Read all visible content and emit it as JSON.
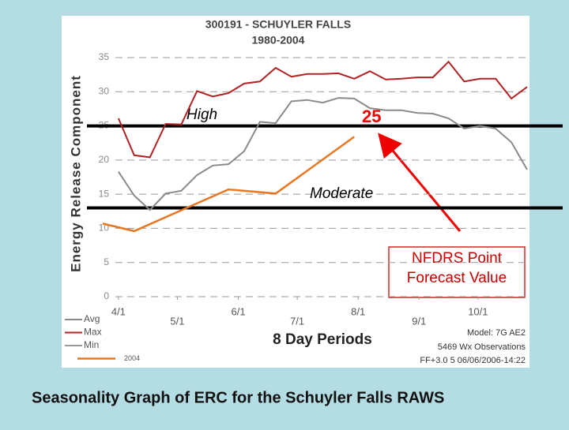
{
  "chart_data": {
    "type": "line",
    "title": "300191 - SCHUYLER FALLS",
    "subtitle": "1980-2004",
    "y_label": "Energy Release Component",
    "x_label": "8 Day Periods",
    "caption": "Seasonality Graph of ERC for the Schuyler Falls RAWS",
    "notes": [
      "Model: 7G AE2",
      "5469 Wx Observations",
      "FF+3.0 5 06/06/2006-14:22"
    ],
    "forecast_label": "25",
    "forecast_box": "NFDRS Point Forecast Value",
    "thresholds": [
      {
        "value": 25,
        "label": "High"
      },
      {
        "value": 13,
        "label": "Moderate"
      }
    ],
    "xlim": [
      -8,
      208
    ],
    "ylim": [
      0,
      35
    ],
    "xticks": [
      {
        "value": 0,
        "label": "4/1"
      },
      {
        "value": 30,
        "label": "5/1"
      },
      {
        "value": 61,
        "label": "6/1"
      },
      {
        "value": 91,
        "label": "7/1"
      },
      {
        "value": 122,
        "label": "8/1"
      },
      {
        "value": 153,
        "label": "9/1"
      },
      {
        "value": 183,
        "label": "10/1"
      }
    ],
    "yticks": [
      0,
      5,
      10,
      15,
      20,
      25,
      30,
      35
    ],
    "grid": true,
    "series": [
      {
        "name": "Avg",
        "color": "#8a8a8a",
        "x": [
          0,
          8,
          16,
          24,
          32,
          40,
          48,
          56,
          64,
          72,
          80,
          88,
          96,
          104,
          112,
          120,
          128,
          136,
          144,
          152,
          160,
          168,
          176,
          184,
          192,
          200,
          208
        ],
        "values": [
          18.3,
          14.8,
          12.7,
          15.1,
          15.5,
          17.8,
          19.2,
          19.4,
          21.3,
          25.6,
          25.4,
          28.6,
          28.8,
          28.4,
          29.1,
          29.0,
          27.6,
          27.3,
          27.3,
          26.9,
          26.8,
          26.1,
          24.6,
          25.0,
          24.6,
          22.6,
          18.6
        ]
      },
      {
        "name": "Max",
        "color": "#b22222",
        "x": [
          0,
          8,
          16,
          24,
          32,
          40,
          48,
          56,
          64,
          72,
          80,
          88,
          96,
          104,
          112,
          120,
          128,
          136,
          144,
          152,
          160,
          168,
          176,
          184,
          192,
          200,
          208
        ],
        "values": [
          26.1,
          20.7,
          20.4,
          25.3,
          25.2,
          30.1,
          29.3,
          29.8,
          31.2,
          31.5,
          33.5,
          32.2,
          32.6,
          32.6,
          32.7,
          31.9,
          33.0,
          31.8,
          31.9,
          32.1,
          32.1,
          34.4,
          31.5,
          31.9,
          31.9,
          29.0,
          30.7
        ]
      },
      {
        "name": "Min",
        "color": "#9a9a9a",
        "x": [
          0,
          8,
          16,
          24,
          32,
          40,
          48,
          56,
          64,
          72,
          80,
          88,
          96,
          104,
          112,
          120,
          128,
          136,
          144,
          152,
          160,
          168,
          176,
          184,
          192,
          200,
          208
        ],
        "values": [
          null,
          null,
          null,
          null,
          null,
          null,
          null,
          null,
          null,
          null,
          null,
          null,
          null,
          null,
          null,
          null,
          null,
          null,
          null,
          null,
          null,
          null,
          null,
          null,
          null,
          null,
          null
        ]
      },
      {
        "name": "2004",
        "color": "#e87722",
        "x": [
          -8,
          8,
          56,
          80,
          120
        ],
        "values": [
          10.7,
          9.6,
          15.7,
          15.1,
          23.4
        ]
      }
    ]
  }
}
